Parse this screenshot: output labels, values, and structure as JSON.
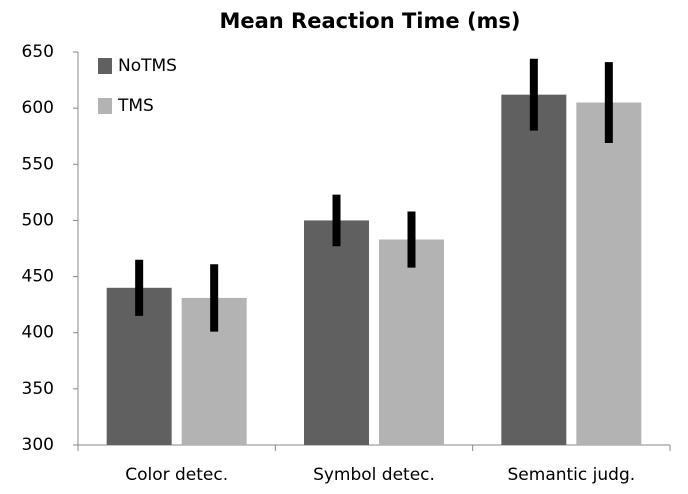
{
  "chart_data": {
    "type": "bar",
    "title": "Mean Reaction Time (ms)",
    "categories": [
      "Color detec.",
      "Symbol detec.",
      "Semantic judg."
    ],
    "series": [
      {
        "name": "NoTMS",
        "color": "#606060",
        "values": [
          440,
          500,
          612
        ],
        "errors": [
          25,
          23,
          32
        ]
      },
      {
        "name": "TMS",
        "color": "#b3b3b3",
        "values": [
          431,
          483,
          605
        ],
        "errors": [
          30,
          25,
          36
        ]
      }
    ],
    "ylim": [
      300,
      650
    ],
    "yticks": [
      300,
      350,
      400,
      450,
      500,
      550,
      600,
      650
    ],
    "grid": false,
    "legend": "top-left"
  }
}
